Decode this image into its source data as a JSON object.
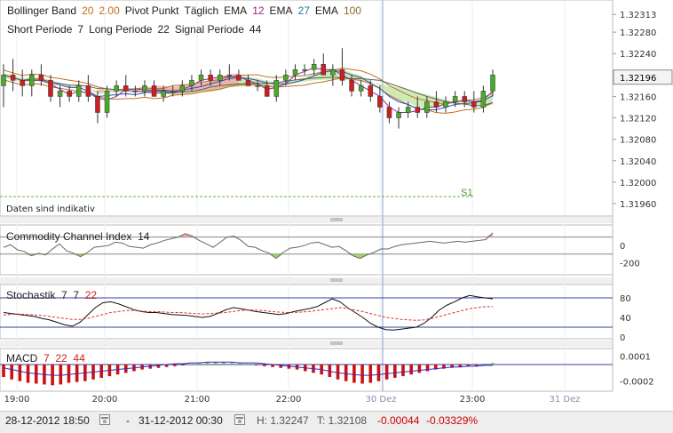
{
  "header": {
    "line1": [
      {
        "text": "Bollinger Band",
        "color": "#222222"
      },
      {
        "text": "20",
        "color": "#c07020"
      },
      {
        "text": "2.00",
        "color": "#c07020"
      },
      {
        "text": "Pivot Punkt",
        "color": "#222222"
      },
      {
        "text": "Täglich",
        "color": "#222222"
      },
      {
        "text": "EMA",
        "color": "#222222"
      },
      {
        "text": "12",
        "color": "#a0207a"
      },
      {
        "text": "EMA",
        "color": "#222222"
      },
      {
        "text": "27",
        "color": "#207aa0"
      },
      {
        "text": "EMA",
        "color": "#222222"
      },
      {
        "text": "100",
        "color": "#8a6a2a"
      }
    ],
    "line2": [
      {
        "text": "Short Periode",
        "color": "#222222"
      },
      {
        "text": "7",
        "color": "#222222"
      },
      {
        "text": "Long Periode",
        "color": "#222222"
      },
      {
        "text": "22",
        "color": "#222222"
      },
      {
        "text": "Signal Periode",
        "color": "#222222"
      },
      {
        "text": "44",
        "color": "#222222"
      }
    ]
  },
  "notice": "Daten sind indikativ",
  "pivot_label": "S1",
  "current_price": "1.32196",
  "panels": {
    "cci": {
      "name": "Commodity Channel Index",
      "param": "14"
    },
    "stoch": {
      "name": "Stochastik",
      "p1": "7",
      "p2": "7",
      "p3": "22"
    },
    "macd": {
      "name": "MACD",
      "p1": "7",
      "p2": "22",
      "p3": "44"
    }
  },
  "footer": {
    "from": "28-12-2012 18:50",
    "dash": "-",
    "to": "31-12-2012 00:30",
    "high": "H: 1.32247",
    "low": "T: 1.32108",
    "change": "-0.00044",
    "change_pct": "-0.03329%"
  },
  "colors": {
    "bull": "#4aaa2a",
    "bear": "#cc2020",
    "ichimoku_green": "#a8d878",
    "ichimoku_red": "#f0a0a0",
    "bollinger": "#c07020",
    "ema12": "#8a30a0",
    "ema27": "#3050c0",
    "ema100": "#606060",
    "pivot": "#6ab04a",
    "negative": "#cc0000"
  },
  "chart_data": [
    {
      "type": "candlestick",
      "title": "",
      "x_ticks": [
        "19:00",
        "20:00",
        "21:00",
        "22:00",
        "30 Dez",
        "23:00",
        "31 Dez"
      ],
      "y_ticks": [
        "1.32313",
        "1.32280",
        "1.32240",
        "1.32196",
        "1.32160",
        "1.32120",
        "1.32080",
        "1.32040",
        "1.32000",
        "1.31960"
      ],
      "ylim": [
        1.3195,
        1.3233
      ],
      "pivot_S1": 1.31973,
      "last_price": 1.32196,
      "candles": [
        [
          1.3218,
          1.3222,
          1.3214,
          1.322
        ],
        [
          1.322,
          1.3223,
          1.3217,
          1.3219
        ],
        [
          1.3219,
          1.3221,
          1.3216,
          1.3218
        ],
        [
          1.3218,
          1.3221,
          1.3216,
          1.322
        ],
        [
          1.322,
          1.3222,
          1.3218,
          1.3219
        ],
        [
          1.3219,
          1.322,
          1.3215,
          1.3216
        ],
        [
          1.3216,
          1.3218,
          1.3214,
          1.3217
        ],
        [
          1.3217,
          1.3218,
          1.3215,
          1.3216
        ],
        [
          1.3216,
          1.3219,
          1.3215,
          1.3218
        ],
        [
          1.3218,
          1.322,
          1.3215,
          1.3216
        ],
        [
          1.3216,
          1.3217,
          1.3211,
          1.3213
        ],
        [
          1.3213,
          1.3218,
          1.3212,
          1.3217
        ],
        [
          1.3217,
          1.3219,
          1.3216,
          1.3218
        ],
        [
          1.3218,
          1.322,
          1.3216,
          1.3217
        ],
        [
          1.3217,
          1.3218,
          1.3216,
          1.3217
        ],
        [
          1.3217,
          1.3219,
          1.3216,
          1.3218
        ],
        [
          1.3218,
          1.3219,
          1.3216,
          1.3216
        ],
        [
          1.3216,
          1.3218,
          1.3215,
          1.3217
        ],
        [
          1.3217,
          1.3218,
          1.3216,
          1.3217
        ],
        [
          1.3217,
          1.3219,
          1.3216,
          1.3218
        ],
        [
          1.3218,
          1.322,
          1.3217,
          1.3219
        ],
        [
          1.3219,
          1.3221,
          1.3218,
          1.322
        ],
        [
          1.322,
          1.3221,
          1.3218,
          1.3219
        ],
        [
          1.3219,
          1.3221,
          1.3218,
          1.322
        ],
        [
          1.322,
          1.3222,
          1.3219,
          1.322
        ],
        [
          1.322,
          1.3221,
          1.3219,
          1.3219
        ],
        [
          1.3219,
          1.322,
          1.3218,
          1.3218
        ],
        [
          1.3218,
          1.3219,
          1.3217,
          1.3218
        ],
        [
          1.3218,
          1.3219,
          1.3216,
          1.3216
        ],
        [
          1.3216,
          1.322,
          1.3215,
          1.3219
        ],
        [
          1.3219,
          1.3221,
          1.3218,
          1.322
        ],
        [
          1.322,
          1.3222,
          1.3219,
          1.3221
        ],
        [
          1.3221,
          1.3222,
          1.322,
          1.3221
        ],
        [
          1.3221,
          1.3223,
          1.322,
          1.3222
        ],
        [
          1.3222,
          1.3224,
          1.322,
          1.322
        ],
        [
          1.322,
          1.3222,
          1.3218,
          1.3221
        ],
        [
          1.3221,
          1.3225,
          1.3218,
          1.3219
        ],
        [
          1.3219,
          1.322,
          1.3216,
          1.3217
        ],
        [
          1.3217,
          1.3219,
          1.3216,
          1.3218
        ],
        [
          1.3218,
          1.3219,
          1.3215,
          1.3216
        ],
        [
          1.3216,
          1.3218,
          1.3213,
          1.3214
        ],
        [
          1.3214,
          1.3215,
          1.3211,
          1.3212
        ],
        [
          1.3212,
          1.3214,
          1.321,
          1.3213
        ],
        [
          1.3213,
          1.3215,
          1.3212,
          1.3214
        ],
        [
          1.3214,
          1.3216,
          1.3212,
          1.3213
        ],
        [
          1.3213,
          1.3216,
          1.3212,
          1.3215
        ],
        [
          1.3215,
          1.3217,
          1.3213,
          1.3214
        ],
        [
          1.3214,
          1.3216,
          1.3213,
          1.3215
        ],
        [
          1.3215,
          1.3217,
          1.3214,
          1.3216
        ],
        [
          1.3216,
          1.3217,
          1.3214,
          1.3215
        ],
        [
          1.3215,
          1.3217,
          1.3213,
          1.3214
        ],
        [
          1.3214,
          1.3218,
          1.3213,
          1.3217
        ],
        [
          1.3217,
          1.3221,
          1.3216,
          1.322
        ]
      ]
    },
    {
      "type": "line",
      "title": "Commodity Channel Index 14",
      "y_ticks": [
        "0",
        "-200"
      ],
      "ylim": [
        -300,
        200
      ],
      "levels": [
        100,
        -100
      ],
      "values": [
        -20,
        10,
        -50,
        -70,
        -120,
        -90,
        -110,
        -40,
        20,
        -60,
        -90,
        -130,
        -80,
        -20,
        -10,
        0,
        40,
        30,
        -10,
        -20,
        -30,
        10,
        30,
        60,
        80,
        100,
        140,
        110,
        60,
        20,
        -20,
        40,
        100,
        110,
        60,
        -10,
        -20,
        -60,
        -90,
        -150,
        -80,
        -30,
        -20,
        0,
        30,
        40,
        10,
        -20,
        -10,
        -60,
        -120,
        -150,
        -110,
        -80,
        -40,
        -40,
        -10,
        10,
        20,
        30,
        40,
        50,
        40,
        30,
        40,
        50,
        40,
        50,
        60,
        70,
        150
      ]
    },
    {
      "type": "line",
      "title": "Stochastik 7 7 22",
      "y_ticks": [
        "80",
        "40",
        "0"
      ],
      "ylim": [
        0,
        100
      ],
      "levels": [
        80,
        20
      ],
      "series": [
        {
          "values": [
            50,
            48,
            46,
            44,
            42,
            38,
            35,
            30,
            25,
            22,
            30,
            45,
            60,
            70,
            72,
            68,
            62,
            56,
            52,
            50,
            50,
            48,
            46,
            45,
            44,
            42,
            40,
            42,
            48,
            55,
            60,
            58,
            55,
            52,
            50,
            48,
            46,
            48,
            52,
            55,
            58,
            62,
            70,
            78,
            72,
            60,
            50,
            40,
            28,
            20,
            15,
            14,
            16,
            18,
            20,
            28,
            40,
            55,
            65,
            72,
            80,
            85,
            82,
            80,
            78
          ]
        },
        {
          "values": [
            45,
            46,
            47,
            46,
            45,
            44,
            42,
            40,
            38,
            36,
            36,
            38,
            42,
            46,
            50,
            52,
            54,
            54,
            53,
            52,
            52,
            51,
            50,
            50,
            49,
            48,
            47,
            48,
            49,
            50,
            52,
            54,
            55,
            55,
            54,
            52,
            51,
            50,
            50,
            51,
            52,
            54,
            56,
            58,
            60,
            58,
            55,
            52,
            48,
            44,
            40,
            38,
            36,
            35,
            34,
            35,
            38,
            42,
            46,
            50,
            54,
            58,
            60,
            62,
            62
          ]
        }
      ]
    },
    {
      "type": "bar",
      "title": "MACD 7 22 44",
      "y_ticks": [
        "0.0001",
        "-0.0002"
      ],
      "ylim": [
        -0.0003,
        0.00015
      ],
      "histogram": [
        -0.00015,
        -0.00018,
        -0.0002,
        -0.00022,
        -0.00023,
        -0.00024,
        -0.00025,
        -0.00024,
        -0.00022,
        -0.00021,
        -0.0002,
        -0.00018,
        -0.00016,
        -0.00014,
        -0.00012,
        -0.0001,
        -8e-05,
        -6e-05,
        -5e-05,
        -4e-05,
        -3e-05,
        -2e-05,
        -1e-05,
        1e-05,
        2e-05,
        3e-05,
        3e-05,
        3e-05,
        2e-05,
        2e-05,
        1e-05,
        -1e-05,
        -2e-05,
        -3e-05,
        -4e-05,
        -5e-05,
        -6e-05,
        -8e-05,
        -0.0001,
        -0.00012,
        -0.00015,
        -0.00018,
        -0.0002,
        -0.00022,
        -0.00023,
        -0.00022,
        -0.0002,
        -0.00018,
        -0.00016,
        -0.00014,
        -0.00012,
        -0.0001,
        -8e-05,
        -6e-05,
        -5e-05,
        -4e-05,
        -3e-05,
        -2e-05,
        -2e-05,
        -1e-05,
        2e-05
      ],
      "signal": [
        -4e-05,
        -6e-05,
        -8e-05,
        -0.0001,
        -0.00011,
        -0.00012,
        -0.00013,
        -0.00013,
        -0.00012,
        -0.00011,
        -0.0001,
        -9e-05,
        -8e-05,
        -7e-05,
        -6e-05,
        -5e-05,
        -4e-05,
        -3e-05,
        -2e-05,
        -1e-05,
        0,
        1e-05,
        1e-05,
        2e-05,
        2e-05,
        3e-05,
        3e-05,
        3e-05,
        3e-05,
        2e-05,
        2e-05,
        2e-05,
        1e-05,
        0,
        -1e-05,
        -2e-05,
        -3e-05,
        -4e-05,
        -5e-05,
        -6e-05,
        -8e-05,
        -0.0001,
        -0.00011,
        -0.00012,
        -0.00013,
        -0.00013,
        -0.00012,
        -0.00011,
        -0.0001,
        -9e-05,
        -8e-05,
        -7e-05,
        -6e-05,
        -5e-05,
        -4e-05,
        -3e-05,
        -3e-05,
        -2e-05,
        -2e-05,
        -1e-05,
        -1e-05
      ]
    }
  ]
}
